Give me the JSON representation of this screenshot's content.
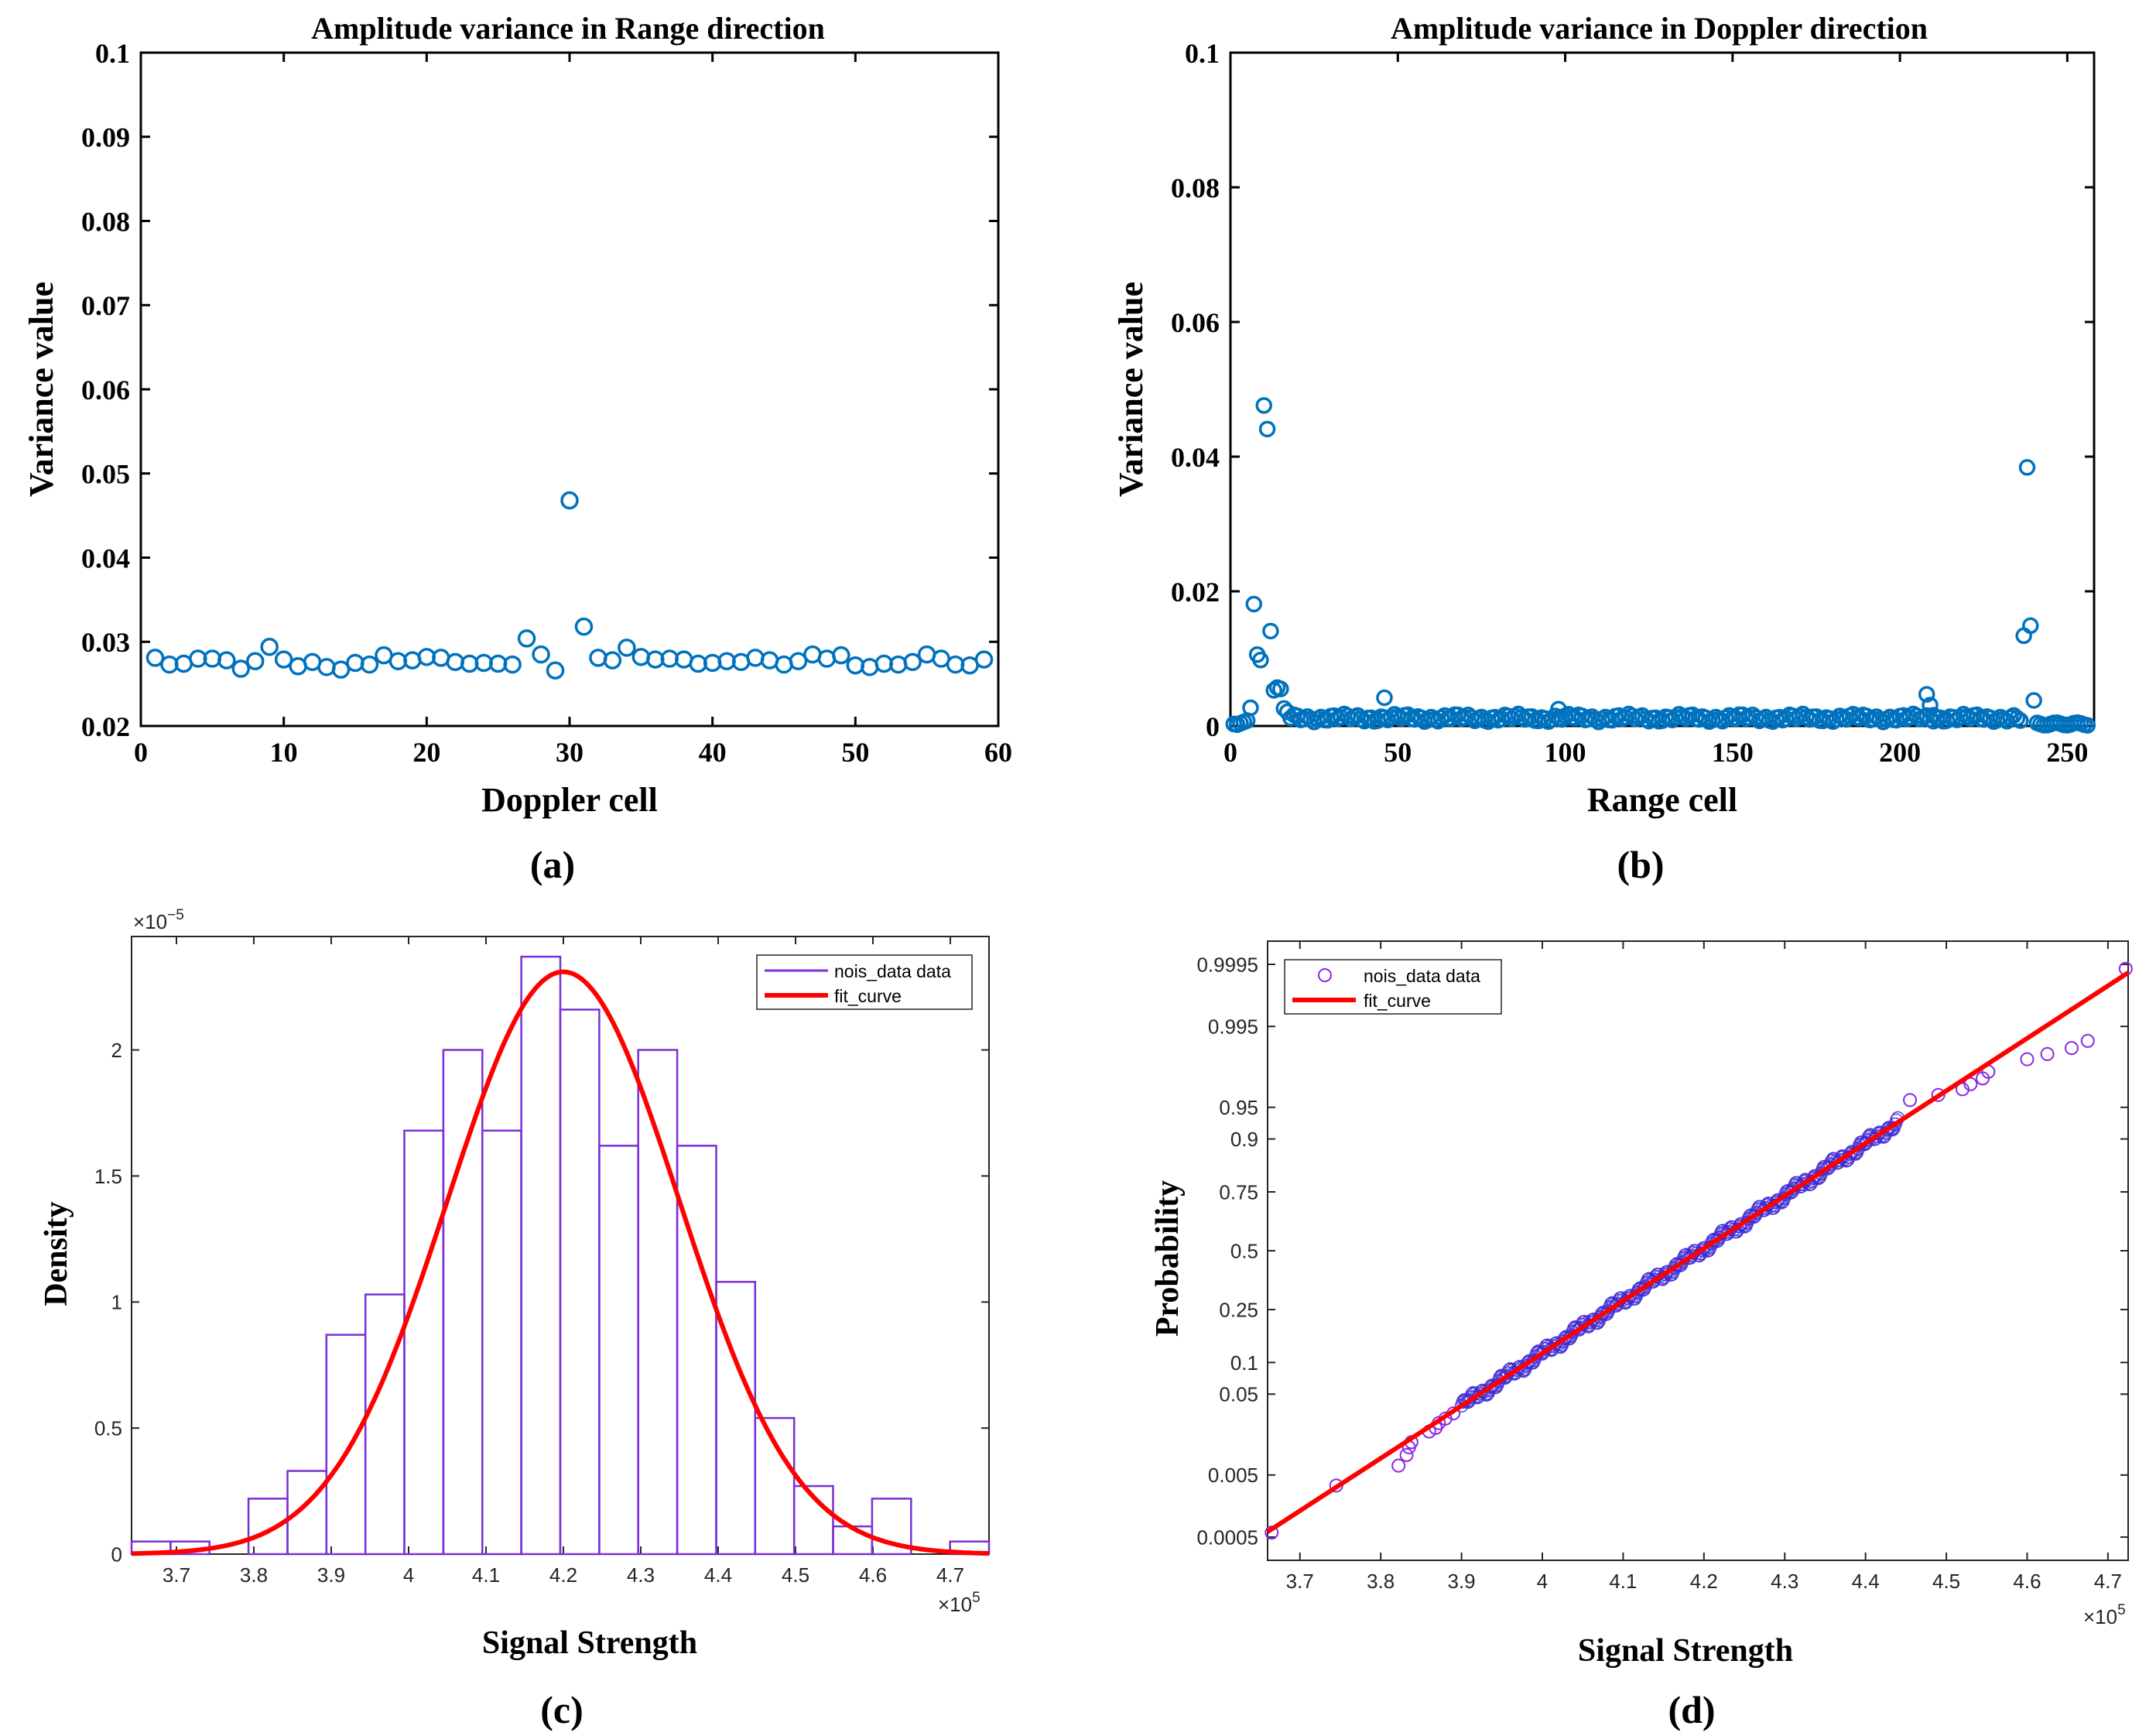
{
  "colors": {
    "marker_blue": "#0072BD",
    "hist_purple": "#7B2FD6",
    "fit_red": "#FF0000",
    "qq_marker": "#8A2BE2",
    "qq_dense": "#3F2BD6",
    "axis": "#000000",
    "sans_axis": "#262626"
  },
  "chart_data": [
    {
      "id": "a",
      "type": "scatter",
      "title": "Amplitude variance in Range direction",
      "xlabel": "Doppler cell",
      "ylabel": "Variance value",
      "panel_label": "(a)",
      "xlim": [
        0,
        60
      ],
      "ylim": [
        0.02,
        0.1
      ],
      "xticks": [
        0,
        10,
        20,
        30,
        40,
        50,
        60
      ],
      "xtick_labels": [
        "0",
        "10",
        "20",
        "30",
        "40",
        "50",
        "60"
      ],
      "yticks": [
        0.02,
        0.03,
        0.04,
        0.05,
        0.06,
        0.07,
        0.08,
        0.09,
        0.1
      ],
      "ytick_labels": [
        "0.02",
        "0.03",
        "0.04",
        "0.05",
        "0.06",
        "0.07",
        "0.08",
        "0.09",
        "0.1"
      ],
      "x": [
        1,
        2,
        3,
        4,
        5,
        6,
        7,
        8,
        9,
        10,
        11,
        12,
        13,
        14,
        15,
        16,
        17,
        18,
        19,
        20,
        21,
        22,
        23,
        24,
        25,
        26,
        27,
        28,
        29,
        30,
        31,
        32,
        33,
        34,
        35,
        36,
        37,
        38,
        39,
        40,
        41,
        42,
        43,
        44,
        45,
        46,
        47,
        48,
        49,
        50,
        51,
        52,
        53,
        54,
        55,
        56,
        57,
        58,
        59
      ],
      "y": [
        0.0281,
        0.0273,
        0.0274,
        0.028,
        0.028,
        0.0278,
        0.0268,
        0.0277,
        0.0294,
        0.0279,
        0.0271,
        0.0276,
        0.027,
        0.0267,
        0.0275,
        0.0273,
        0.0284,
        0.0277,
        0.0278,
        0.0282,
        0.0281,
        0.0276,
        0.0274,
        0.0275,
        0.0274,
        0.0273,
        0.0304,
        0.0285,
        0.0266,
        0.0468,
        0.0318,
        0.0281,
        0.0278,
        0.0293,
        0.0282,
        0.0279,
        0.028,
        0.0279,
        0.0274,
        0.0275,
        0.0277,
        0.0276,
        0.0281,
        0.0278,
        0.0273,
        0.0277,
        0.0285,
        0.028,
        0.0284,
        0.0272,
        0.027,
        0.0274,
        0.0273,
        0.0276,
        0.0285,
        0.028,
        0.0273,
        0.0272,
        0.0279
      ]
    },
    {
      "id": "b",
      "type": "scatter",
      "title": "Amplitude variance in Doppler direction",
      "xlabel": "Range cell",
      "ylabel": "Variance value",
      "panel_label": "(b)",
      "xlim": [
        0,
        258
      ],
      "ylim": [
        0,
        0.1
      ],
      "xticks": [
        0,
        50,
        100,
        150,
        200,
        250
      ],
      "xtick_labels": [
        "0",
        "50",
        "100",
        "150",
        "200",
        "250"
      ],
      "yticks": [
        0,
        0.02,
        0.04,
        0.06,
        0.08,
        0.1
      ],
      "ytick_labels": [
        "0",
        "0.02",
        "0.04",
        "0.06",
        "0.08",
        "0.1"
      ],
      "outliers": {
        "x": [
          1,
          2,
          3,
          4,
          5,
          6,
          7,
          8,
          9,
          10,
          11,
          12,
          13,
          14,
          15,
          16,
          17,
          46,
          98,
          208,
          209,
          210,
          236,
          237,
          238,
          239,
          240
        ],
        "y": [
          0.0003,
          0.0002,
          0.0004,
          0.0006,
          0.0008,
          0.0027,
          0.0181,
          0.0106,
          0.0098,
          0.0476,
          0.0441,
          0.0141,
          0.0053,
          0.0057,
          0.0055,
          0.0026,
          0.0021,
          0.0042,
          0.0025,
          0.0047,
          0.0031,
          0.0016,
          0.0008,
          0.0134,
          0.0384,
          0.0149,
          0.0038
        ]
      },
      "baseline": {
        "x_start": 18,
        "x_end": 235,
        "mean": 0.0012,
        "tail_x_start": 241,
        "tail_x_end": 256,
        "tail_mean": 0.0003
      }
    },
    {
      "id": "c",
      "type": "bar",
      "xlabel": "Signal Strength",
      "ylabel": "Density",
      "panel_label": "(c)",
      "x_exponent": "×10",
      "x_exponent_power": "5",
      "y_exponent": "×10",
      "y_exponent_power": "−5",
      "xlim": [
        3.642,
        4.75
      ],
      "ylim": [
        0,
        2.45
      ],
      "xticks": [
        3.7,
        3.8,
        3.9,
        4,
        4.1,
        4.2,
        4.3,
        4.4,
        4.5,
        4.6,
        4.7
      ],
      "xtick_labels": [
        "3.7",
        "3.8",
        "3.9",
        "4",
        "4.1",
        "4.2",
        "4.3",
        "4.4",
        "4.5",
        "4.6",
        "4.7"
      ],
      "yticks": [
        0,
        0.5,
        1,
        1.5,
        2
      ],
      "ytick_labels": [
        "0",
        "0.5",
        "1",
        "1.5",
        "2"
      ],
      "bin_edges": [
        3.642,
        3.6924,
        3.7427,
        3.7931,
        3.8435,
        3.8938,
        3.9442,
        3.9945,
        4.0449,
        4.0953,
        4.1456,
        4.196,
        4.2464,
        4.2967,
        4.3471,
        4.3975,
        4.4478,
        4.4982,
        4.5485,
        4.5989,
        4.6493,
        4.6996,
        4.75
      ],
      "bin_values": [
        0.05,
        0.05,
        0,
        0.22,
        0.33,
        0.87,
        1.03,
        1.68,
        2.0,
        1.68,
        2.37,
        2.16,
        1.62,
        2.0,
        1.62,
        1.08,
        0.54,
        0.27,
        0.11,
        0.22,
        0,
        0.05
      ],
      "fit": {
        "mean": 4.2,
        "peak": 2.31,
        "sd": 0.15
      },
      "legend": [
        "nois_data data",
        "fit_curve"
      ]
    },
    {
      "id": "d",
      "type": "scatter",
      "xlabel": "Signal Strength",
      "ylabel": "Probability",
      "panel_label": "(d)",
      "x_exponent": "×10",
      "x_exponent_power": "5",
      "xlim": [
        3.66,
        4.725
      ],
      "xticks": [
        3.7,
        3.8,
        3.9,
        4,
        4.1,
        4.2,
        4.3,
        4.4,
        4.5,
        4.6,
        4.7
      ],
      "xtick_labels": [
        "3.7",
        "3.8",
        "3.9",
        "4",
        "4.1",
        "4.2",
        "4.3",
        "4.4",
        "4.5",
        "4.6",
        "4.7"
      ],
      "yticks": [
        0.0005,
        0.005,
        0.05,
        0.1,
        0.25,
        0.5,
        0.75,
        0.9,
        0.95,
        0.995,
        0.9995
      ],
      "ytick_labels": [
        "0.0005",
        "0.005",
        "0.05",
        "0.1",
        "0.25",
        "0.5",
        "0.75",
        "0.9",
        "0.95",
        "0.995",
        "0.9995"
      ],
      "fit_line": {
        "x": [
          3.66,
          4.725
        ],
        "p": [
          0.00062,
          0.9993
        ]
      },
      "sparse_points": {
        "x": [
          3.665,
          3.745,
          3.822,
          3.832,
          3.835,
          3.838,
          3.86,
          3.868,
          3.872,
          3.88,
          3.89,
          4.455,
          4.49,
          4.52,
          4.53,
          4.545,
          4.552,
          4.6,
          4.625,
          4.655,
          4.675,
          4.722
        ],
        "p": [
          0.0006,
          0.0035,
          0.0068,
          0.0095,
          0.012,
          0.014,
          0.019,
          0.021,
          0.024,
          0.027,
          0.031,
          0.958,
          0.963,
          0.968,
          0.972,
          0.976,
          0.98,
          0.986,
          0.988,
          0.99,
          0.992,
          0.9994
        ]
      },
      "dense_range": [
        3.9,
        4.44
      ],
      "legend": [
        "nois_data data",
        "fit_curve"
      ]
    }
  ]
}
